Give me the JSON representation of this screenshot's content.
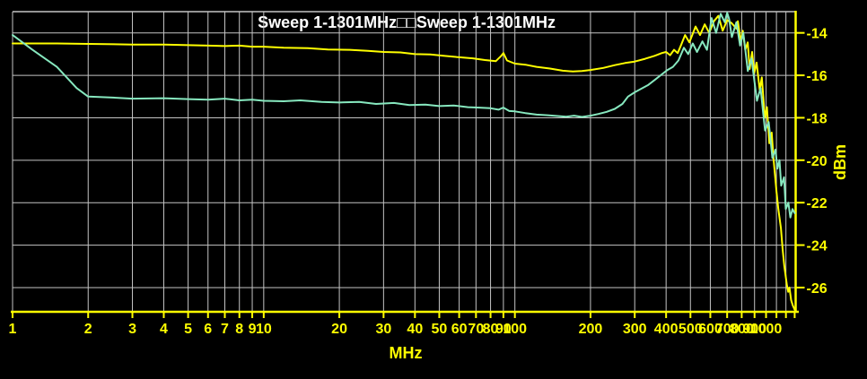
{
  "title": "Sweep 1-1301MHz□□Sweep 1-1301MHz",
  "colors": {
    "background": "#000000",
    "grid": "#c4c4c4",
    "axis": "#ffff00",
    "title": "#ffffff",
    "trace_sweep1": "#ffff00",
    "trace_sweep2": "#87e8bf"
  },
  "chart_data": {
    "type": "line",
    "title": "Sweep 1-1301MHz□□Sweep 1-1301MHz",
    "xlabel": "MHz",
    "ylabel": "dBm",
    "x_scale": "log",
    "x_range": [
      1,
      1301
    ],
    "y_range": [
      -27.1,
      -13.0
    ],
    "grid": true,
    "legend_position": "none",
    "y_ticks": [
      -14,
      -16,
      -18,
      -20,
      -22,
      -24,
      -26
    ],
    "x_tick_labels": [
      1,
      2,
      3,
      4,
      5,
      6,
      7,
      8,
      9,
      10,
      20,
      30,
      40,
      50,
      60,
      70,
      80,
      90,
      100,
      200,
      300,
      400,
      500,
      600,
      700,
      800,
      900,
      1000
    ],
    "x_grid": [
      1,
      2,
      3,
      4,
      5,
      6,
      7,
      8,
      9,
      10,
      20,
      30,
      40,
      50,
      60,
      70,
      80,
      90,
      100,
      200,
      300,
      400,
      500,
      600,
      700,
      800,
      900,
      1000,
      1100,
      1200
    ],
    "x_tick_marks_extra": [
      1100,
      1200,
      1300
    ],
    "series": [
      {
        "name": "Sweep 1-1301MHz (yellow)",
        "color": "#ffff00",
        "points": [
          [
            1,
            -14.5
          ],
          [
            1.5,
            -14.5
          ],
          [
            2,
            -14.52
          ],
          [
            3,
            -14.55
          ],
          [
            4,
            -14.55
          ],
          [
            5,
            -14.58
          ],
          [
            6,
            -14.6
          ],
          [
            7,
            -14.62
          ],
          [
            8,
            -14.6
          ],
          [
            9,
            -14.65
          ],
          [
            10,
            -14.65
          ],
          [
            12,
            -14.7
          ],
          [
            15,
            -14.72
          ],
          [
            18,
            -14.78
          ],
          [
            22,
            -14.8
          ],
          [
            26,
            -14.85
          ],
          [
            30,
            -14.9
          ],
          [
            35,
            -14.92
          ],
          [
            40,
            -15.0
          ],
          [
            46,
            -15.02
          ],
          [
            52,
            -15.08
          ],
          [
            60,
            -15.15
          ],
          [
            68,
            -15.2
          ],
          [
            76,
            -15.28
          ],
          [
            84,
            -15.33
          ],
          [
            88,
            -15.1
          ],
          [
            90,
            -14.95
          ],
          [
            93,
            -15.3
          ],
          [
            100,
            -15.45
          ],
          [
            110,
            -15.5
          ],
          [
            122,
            -15.6
          ],
          [
            138,
            -15.68
          ],
          [
            155,
            -15.78
          ],
          [
            170,
            -15.82
          ],
          [
            185,
            -15.8
          ],
          [
            200,
            -15.75
          ],
          [
            225,
            -15.65
          ],
          [
            250,
            -15.52
          ],
          [
            275,
            -15.42
          ],
          [
            300,
            -15.35
          ],
          [
            330,
            -15.22
          ],
          [
            360,
            -15.08
          ],
          [
            385,
            -14.95
          ],
          [
            400,
            -14.9
          ],
          [
            415,
            -15.05
          ],
          [
            430,
            -14.8
          ],
          [
            445,
            -14.95
          ],
          [
            460,
            -14.55
          ],
          [
            476,
            -14.1
          ],
          [
            495,
            -14.45
          ],
          [
            524,
            -13.7
          ],
          [
            546,
            -14.1
          ],
          [
            570,
            -13.6
          ],
          [
            594,
            -14.0
          ],
          [
            620,
            -13.45
          ],
          [
            646,
            -13.2
          ],
          [
            672,
            -13.9
          ],
          [
            700,
            -13.4
          ],
          [
            731,
            -13.55
          ],
          [
            762,
            -13.8
          ],
          [
            772,
            -13.45
          ],
          [
            794,
            -14.45
          ],
          [
            808,
            -13.9
          ],
          [
            827,
            -14.8
          ],
          [
            845,
            -14.45
          ],
          [
            861,
            -15.7
          ],
          [
            880,
            -14.9
          ],
          [
            897,
            -15.9
          ],
          [
            917,
            -15.4
          ],
          [
            944,
            -16.7
          ],
          [
            962,
            -16.1
          ],
          [
            989,
            -18.0
          ],
          [
            1008,
            -17.5
          ],
          [
            1031,
            -19.2
          ],
          [
            1053,
            -18.7
          ],
          [
            1072,
            -20.0
          ],
          [
            1101,
            -21.5
          ],
          [
            1119,
            -22.3
          ],
          [
            1146,
            -23.2
          ],
          [
            1164,
            -24.2
          ],
          [
            1183,
            -25.0
          ],
          [
            1211,
            -25.9
          ],
          [
            1225,
            -26.2
          ],
          [
            1239,
            -26.0
          ],
          [
            1259,
            -26.6
          ],
          [
            1279,
            -26.85
          ],
          [
            1301,
            -27.05
          ]
        ]
      },
      {
        "name": "Sweep 1-1301MHz (green)",
        "color": "#87e8bf",
        "points": [
          [
            1,
            -14.1
          ],
          [
            1.2,
            -14.8
          ],
          [
            1.5,
            -15.6
          ],
          [
            1.8,
            -16.6
          ],
          [
            2,
            -17.0
          ],
          [
            2.5,
            -17.05
          ],
          [
            3,
            -17.1
          ],
          [
            4,
            -17.08
          ],
          [
            5,
            -17.12
          ],
          [
            6,
            -17.15
          ],
          [
            7,
            -17.1
          ],
          [
            8,
            -17.18
          ],
          [
            9,
            -17.15
          ],
          [
            10,
            -17.2
          ],
          [
            12,
            -17.22
          ],
          [
            14,
            -17.18
          ],
          [
            17,
            -17.25
          ],
          [
            20,
            -17.28
          ],
          [
            24,
            -17.25
          ],
          [
            28,
            -17.35
          ],
          [
            33,
            -17.3
          ],
          [
            38,
            -17.4
          ],
          [
            44,
            -17.38
          ],
          [
            50,
            -17.45
          ],
          [
            57,
            -17.42
          ],
          [
            65,
            -17.5
          ],
          [
            72,
            -17.52
          ],
          [
            80,
            -17.55
          ],
          [
            86,
            -17.62
          ],
          [
            90,
            -17.52
          ],
          [
            95,
            -17.68
          ],
          [
            100,
            -17.7
          ],
          [
            110,
            -17.78
          ],
          [
            122,
            -17.85
          ],
          [
            135,
            -17.88
          ],
          [
            148,
            -17.92
          ],
          [
            160,
            -17.95
          ],
          [
            172,
            -17.9
          ],
          [
            185,
            -17.96
          ],
          [
            200,
            -17.9
          ],
          [
            215,
            -17.82
          ],
          [
            232,
            -17.72
          ],
          [
            250,
            -17.58
          ],
          [
            268,
            -17.35
          ],
          [
            282,
            -17.0
          ],
          [
            300,
            -16.8
          ],
          [
            320,
            -16.62
          ],
          [
            340,
            -16.45
          ],
          [
            362,
            -16.2
          ],
          [
            385,
            -15.95
          ],
          [
            405,
            -15.75
          ],
          [
            426,
            -15.6
          ],
          [
            448,
            -15.3
          ],
          [
            471,
            -14.7
          ],
          [
            490,
            -15.0
          ],
          [
            511,
            -14.5
          ],
          [
            531,
            -14.9
          ],
          [
            558,
            -14.4
          ],
          [
            582,
            -14.8
          ],
          [
            607,
            -13.3
          ],
          [
            633,
            -14.0
          ],
          [
            660,
            -13.1
          ],
          [
            685,
            -13.5
          ],
          [
            700,
            -13.05
          ],
          [
            713,
            -13.35
          ],
          [
            731,
            -14.2
          ],
          [
            762,
            -13.5
          ],
          [
            788,
            -14.6
          ],
          [
            812,
            -14.0
          ],
          [
            846,
            -15.8
          ],
          [
            875,
            -15.2
          ],
          [
            920,
            -17.2
          ],
          [
            951,
            -16.6
          ],
          [
            991,
            -18.6
          ],
          [
            1025,
            -18.2
          ],
          [
            1060,
            -19.9
          ],
          [
            1090,
            -19.5
          ],
          [
            1110,
            -20.4
          ],
          [
            1131,
            -20.0
          ],
          [
            1149,
            -21.2
          ],
          [
            1180,
            -20.8
          ],
          [
            1198,
            -22.3
          ],
          [
            1227,
            -22.0
          ],
          [
            1250,
            -22.7
          ],
          [
            1275,
            -22.3
          ],
          [
            1301,
            -22.5
          ]
        ]
      }
    ]
  }
}
